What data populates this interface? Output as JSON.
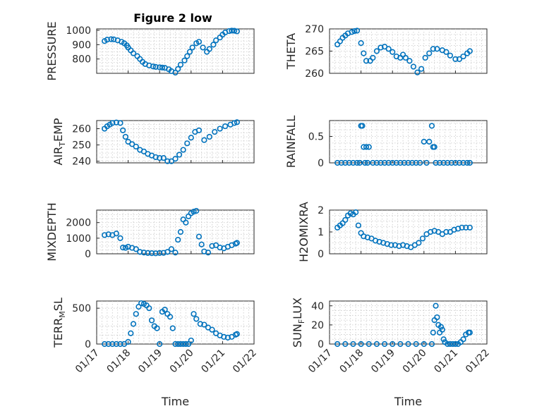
{
  "figure": {
    "title": "Figure 2 low",
    "marker_color": "#0072BD",
    "axis_color": "#262626"
  },
  "chart_data": [
    {
      "type": "scatter",
      "title": "Figure 2 low",
      "ylabel": "PRESSURE",
      "xlabel": "",
      "xlim": [
        "01/17",
        "01/22"
      ],
      "ylim": [
        700,
        1010
      ],
      "yticks": [
        800,
        900,
        1000
      ],
      "xticklabels_shown": false,
      "grid": true,
      "minor_grid": true,
      "x": [
        "01/17 06:00",
        "01/17 08:00",
        "01/17 11:00",
        "01/17 13:00",
        "01/17 16:00",
        "01/17 19:00",
        "01/17 21:00",
        "01/17 23:00",
        "01/18 00:00",
        "01/18 02:00",
        "01/18 04:00",
        "01/18 07:00",
        "01/18 09:00",
        "01/18 11:00",
        "01/18 13:00",
        "01/18 16:00",
        "01/18 19:00",
        "01/18 21:00",
        "01/19 00:00",
        "01/19 02:00",
        "01/19 04:00",
        "01/19 07:00",
        "01/19 09:00",
        "01/19 12:00",
        "01/19 14:00",
        "01/19 16:00",
        "01/19 19:00",
        "01/19 21:00",
        "01/19 23:00",
        "01/20 01:00",
        "01/20 04:00",
        "01/20 06:00",
        "01/20 09:00",
        "01/20 12:00",
        "01/20 14:00",
        "01/20 17:00",
        "01/20 19:00",
        "01/20 22:00",
        "01/21 00:00",
        "01/21 02:00",
        "01/21 05:00",
        "01/21 07:00",
        "01/21 09:00",
        "01/21 11:00"
      ],
      "y": [
        925,
        935,
        938,
        937,
        930,
        920,
        910,
        895,
        880,
        860,
        840,
        820,
        800,
        780,
        765,
        755,
        748,
        745,
        742,
        740,
        738,
        728,
        715,
        705,
        730,
        760,
        790,
        820,
        850,
        880,
        910,
        920,
        880,
        850,
        870,
        900,
        930,
        950,
        970,
        985,
        995,
        998,
        997,
        993
      ]
    },
    {
      "type": "scatter",
      "title": "",
      "ylabel": "THETA",
      "xlabel": "",
      "xlim": [
        "01/17",
        "01/22"
      ],
      "ylim": [
        260,
        270
      ],
      "yticks": [
        260,
        265,
        270
      ],
      "xticklabels_shown": false,
      "grid": true,
      "minor_grid": true,
      "x": [
        "01/17 06:00",
        "01/17 08:00",
        "01/17 10:00",
        "01/17 12:00",
        "01/17 14:00",
        "01/17 17:00",
        "01/17 19:00",
        "01/17 21:00",
        "01/18 00:00",
        "01/18 02:00",
        "01/18 04:00",
        "01/18 07:00",
        "01/18 09:00",
        "01/18 12:00",
        "01/18 15:00",
        "01/18 18:00",
        "01/18 21:00",
        "01/19 00:00",
        "01/19 03:00",
        "01/19 06:00",
        "01/19 08:00",
        "01/19 10:00",
        "01/19 13:00",
        "01/19 16:00",
        "01/19 19:00",
        "01/19 22:00",
        "01/20 01:00",
        "01/20 04:00",
        "01/20 07:00",
        "01/20 10:00",
        "01/20 14:00",
        "01/20 17:00",
        "01/20 20:00",
        "01/21 00:00",
        "01/21 03:00",
        "01/21 06:00",
        "01/21 09:00",
        "01/21 11:00"
      ],
      "y": [
        266.5,
        267.2,
        268,
        268.5,
        269,
        269.3,
        269.5,
        269.6,
        266.8,
        264.5,
        262.8,
        262.8,
        263.5,
        265,
        265.8,
        266,
        265.5,
        264.8,
        263.8,
        263.5,
        264.2,
        263.5,
        262.8,
        261.5,
        260.2,
        261,
        263.5,
        264.5,
        265.5,
        265.5,
        265.2,
        264.8,
        264,
        263.2,
        263.2,
        263.8,
        264.5,
        265
      ]
    },
    {
      "type": "scatter",
      "title": "",
      "ylabel": "AIR_TEMP",
      "xlabel": "",
      "xlim": [
        "01/17",
        "01/22"
      ],
      "ylim": [
        239,
        265
      ],
      "yticks": [
        240,
        250,
        260
      ],
      "xticklabels_shown": false,
      "grid": true,
      "minor_grid": true,
      "x": [
        "01/17 06:00",
        "01/17 08:00",
        "01/17 10:00",
        "01/17 12:00",
        "01/17 15:00",
        "01/17 18:00",
        "01/17 20:00",
        "01/17 22:00",
        "01/18 00:00",
        "01/18 03:00",
        "01/18 06:00",
        "01/18 09:00",
        "01/18 12:00",
        "01/18 15:00",
        "01/18 18:00",
        "01/18 21:00",
        "01/19 00:00",
        "01/19 03:00",
        "01/19 06:00",
        "01/19 09:00",
        "01/19 12:00",
        "01/19 15:00",
        "01/19 18:00",
        "01/19 21:00",
        "01/20 00:00",
        "01/20 03:00",
        "01/20 06:00",
        "01/20 10:00",
        "01/20 14:00",
        "01/20 18:00",
        "01/20 22:00",
        "01/21 02:00",
        "01/21 06:00",
        "01/21 09:00",
        "01/21 11:00"
      ],
      "y": [
        260,
        261.5,
        262.5,
        263.5,
        263.8,
        263.5,
        259,
        255,
        252,
        250.5,
        249,
        247,
        246,
        244.5,
        243.5,
        242.5,
        242,
        242,
        240,
        240,
        241.5,
        244,
        247,
        251,
        254.5,
        258,
        259,
        253,
        255,
        258,
        260,
        261.5,
        262.5,
        263.5,
        264
      ]
    },
    {
      "type": "scatter",
      "title": "",
      "ylabel": "RAINFALL",
      "xlabel": "",
      "xlim": [
        "01/17",
        "01/22"
      ],
      "ylim": [
        0,
        0.8
      ],
      "yticks": [
        0,
        0.5
      ],
      "xticklabels_shown": false,
      "grid": true,
      "minor_grid": true,
      "x": [
        "01/17 06:00",
        "01/17 09:00",
        "01/17 12:00",
        "01/17 15:00",
        "01/17 18:00",
        "01/17 21:00",
        "01/17 23:00",
        "01/18 00:00",
        "01/18 01:00",
        "01/18 02:00",
        "01/18 03:00",
        "01/18 04:00",
        "01/18 05:00",
        "01/18 06:00",
        "01/18 09:00",
        "01/18 12:00",
        "01/18 15:00",
        "01/18 18:00",
        "01/18 21:00",
        "01/19 00:00",
        "01/19 03:00",
        "01/19 06:00",
        "01/19 09:00",
        "01/19 12:00",
        "01/19 15:00",
        "01/19 18:00",
        "01/19 21:00",
        "01/20 00:00",
        "01/20 02:00",
        "01/20 04:00",
        "01/20 06:00",
        "01/20 07:00",
        "01/20 08:00",
        "01/20 09:00",
        "01/20 12:00",
        "01/20 15:00",
        "01/20 18:00",
        "01/20 21:00",
        "01/21 00:00",
        "01/21 03:00",
        "01/21 06:00",
        "01/21 09:00",
        "01/21 11:00"
      ],
      "y": [
        0,
        0,
        0,
        0,
        0,
        0,
        0,
        0.7,
        0.7,
        0.3,
        0,
        0.3,
        0,
        0.3,
        0,
        0,
        0,
        0,
        0,
        0,
        0,
        0,
        0,
        0,
        0,
        0,
        0,
        0.4,
        0,
        0.4,
        0.7,
        0.3,
        0.3,
        0,
        0,
        0,
        0,
        0,
        0,
        0,
        0,
        0,
        0
      ]
    },
    {
      "type": "scatter",
      "title": "",
      "ylabel": "MIXDEPTH",
      "xlabel": "",
      "xlim": [
        "01/17",
        "01/22"
      ],
      "ylim": [
        0,
        2800
      ],
      "yticks": [
        0,
        1000,
        2000
      ],
      "xticklabels_shown": false,
      "grid": true,
      "minor_grid": true,
      "x": [
        "01/17 06:00",
        "01/17 09:00",
        "01/17 12:00",
        "01/17 15:00",
        "01/17 18:00",
        "01/17 20:00",
        "01/17 22:00",
        "01/18 00:00",
        "01/18 03:00",
        "01/18 06:00",
        "01/18 09:00",
        "01/18 12:00",
        "01/18 15:00",
        "01/18 18:00",
        "01/18 21:00",
        "01/19 00:00",
        "01/19 03:00",
        "01/19 06:00",
        "01/19 09:00",
        "01/19 12:00",
        "01/19 14:00",
        "01/19 16:00",
        "01/19 18:00",
        "01/19 20:00",
        "01/19 22:00",
        "01/20 00:00",
        "01/20 02:00",
        "01/20 04:00",
        "01/20 06:00",
        "01/20 08:00",
        "01/20 10:00",
        "01/20 13:00",
        "01/20 16:00",
        "01/20 19:00",
        "01/20 22:00",
        "01/21 01:00",
        "01/21 04:00",
        "01/21 07:00",
        "01/21 10:00",
        "01/21 11:00"
      ],
      "y": [
        1200,
        1250,
        1200,
        1300,
        1000,
        400,
        380,
        450,
        380,
        300,
        120,
        80,
        50,
        40,
        30,
        50,
        60,
        120,
        300,
        80,
        900,
        1400,
        2200,
        2000,
        2400,
        2600,
        2700,
        2750,
        1100,
        600,
        150,
        80,
        500,
        550,
        400,
        350,
        450,
        550,
        650,
        700
      ]
    },
    {
      "type": "scatter",
      "title": "",
      "ylabel": "H2OMIXRA",
      "xlabel": "",
      "xlim": [
        "01/17",
        "01/22"
      ],
      "ylim": [
        0,
        2
      ],
      "yticks": [
        0,
        1,
        2
      ],
      "xticklabels_shown": false,
      "grid": true,
      "minor_grid": true,
      "x": [
        "01/17 06:00",
        "01/17 08:00",
        "01/17 10:00",
        "01/17 12:00",
        "01/17 14:00",
        "01/17 16:00",
        "01/17 18:00",
        "01/17 20:00",
        "01/17 22:00",
        "01/18 00:00",
        "01/18 02:00",
        "01/18 05:00",
        "01/18 08:00",
        "01/18 11:00",
        "01/18 14:00",
        "01/18 17:00",
        "01/18 20:00",
        "01/18 23:00",
        "01/19 02:00",
        "01/19 05:00",
        "01/19 08:00",
        "01/19 11:00",
        "01/19 14:00",
        "01/19 17:00",
        "01/19 20:00",
        "01/19 23:00",
        "01/20 02:00",
        "01/20 05:00",
        "01/20 08:00",
        "01/20 11:00",
        "01/20 14:00",
        "01/20 17:00",
        "01/20 20:00",
        "01/20 23:00",
        "01/21 02:00",
        "01/21 05:00",
        "01/21 08:00",
        "01/21 11:00"
      ],
      "y": [
        1.2,
        1.3,
        1.4,
        1.55,
        1.75,
        1.85,
        1.8,
        1.9,
        1.3,
        0.95,
        0.8,
        0.75,
        0.7,
        0.6,
        0.55,
        0.5,
        0.45,
        0.4,
        0.4,
        0.35,
        0.4,
        0.35,
        0.3,
        0.4,
        0.5,
        0.7,
        0.9,
        1.0,
        1.05,
        1.0,
        0.9,
        1.0,
        1.0,
        1.1,
        1.15,
        1.2,
        1.2,
        1.2
      ]
    },
    {
      "type": "scatter",
      "title": "",
      "ylabel": "TERR_MSL",
      "xlabel": "Time",
      "xlim": [
        "01/17",
        "01/22"
      ],
      "ylim": [
        0,
        600
      ],
      "yticks": [
        0,
        500
      ],
      "xticklabels": [
        "01/17",
        "01/18",
        "01/19",
        "01/20",
        "01/21",
        "01/22"
      ],
      "grid": true,
      "minor_grid": true,
      "x": [
        "01/17 06:00",
        "01/17 09:00",
        "01/17 12:00",
        "01/17 15:00",
        "01/17 18:00",
        "01/17 21:00",
        "01/18 00:00",
        "01/18 02:00",
        "01/18 04:00",
        "01/18 06:00",
        "01/18 08:00",
        "01/18 10:00",
        "01/18 12:00",
        "01/18 14:00",
        "01/18 16:00",
        "01/18 18:00",
        "01/18 20:00",
        "01/18 22:00",
        "01/19 00:00",
        "01/19 02:00",
        "01/19 04:00",
        "01/19 06:00",
        "01/19 08:00",
        "01/19 10:00",
        "01/19 12:00",
        "01/19 14:00",
        "01/19 16:00",
        "01/19 18:00",
        "01/19 20:00",
        "01/19 22:00",
        "01/20 00:00",
        "01/20 02:00",
        "01/20 04:00",
        "01/20 07:00",
        "01/20 10:00",
        "01/20 13:00",
        "01/20 16:00",
        "01/20 19:00",
        "01/20 22:00",
        "01/21 01:00",
        "01/21 04:00",
        "01/21 07:00",
        "01/21 10:00",
        "01/21 11:00"
      ],
      "y": [
        0,
        0,
        0,
        0,
        0,
        0,
        30,
        150,
        280,
        420,
        520,
        570,
        560,
        540,
        500,
        330,
        250,
        220,
        0,
        450,
        480,
        420,
        380,
        220,
        0,
        0,
        0,
        0,
        0,
        0,
        50,
        420,
        350,
        280,
        270,
        230,
        200,
        150,
        120,
        100,
        90,
        100,
        130,
        140
      ]
    },
    {
      "type": "scatter",
      "title": "",
      "ylabel": "SUN_FLUX",
      "xlabel": "Time",
      "xlim": [
        "01/17",
        "01/22"
      ],
      "ylim": [
        0,
        45
      ],
      "yticks": [
        0,
        20,
        40
      ],
      "xticklabels": [
        "01/17",
        "01/18",
        "01/19",
        "01/20",
        "01/21",
        "01/22"
      ],
      "grid": true,
      "minor_grid": true,
      "x": [
        "01/17 06:00",
        "01/17 12:00",
        "01/17 18:00",
        "01/18 00:00",
        "01/18 06:00",
        "01/18 12:00",
        "01/18 18:00",
        "01/19 00:00",
        "01/19 06:00",
        "01/19 12:00",
        "01/19 18:00",
        "01/20 00:00",
        "01/20 06:00",
        "01/20 07:00",
        "01/20 08:00",
        "01/20 09:00",
        "01/20 10:00",
        "01/20 11:00",
        "01/20 12:00",
        "01/20 13:00",
        "01/20 14:00",
        "01/20 15:00",
        "01/20 16:00",
        "01/20 18:00",
        "01/20 20:00",
        "01/20 22:00",
        "01/21 00:00",
        "01/21 02:00",
        "01/21 04:00",
        "01/21 06:00",
        "01/21 08:00",
        "01/21 10:00",
        "01/21 11:00"
      ],
      "y": [
        0,
        0,
        0,
        0,
        0,
        0,
        0,
        0,
        0,
        0,
        0,
        0,
        0,
        12,
        25,
        40,
        28,
        20,
        12,
        18,
        15,
        5,
        2,
        0,
        0,
        0,
        0,
        0,
        2,
        5,
        10,
        12,
        12
      ]
    }
  ]
}
